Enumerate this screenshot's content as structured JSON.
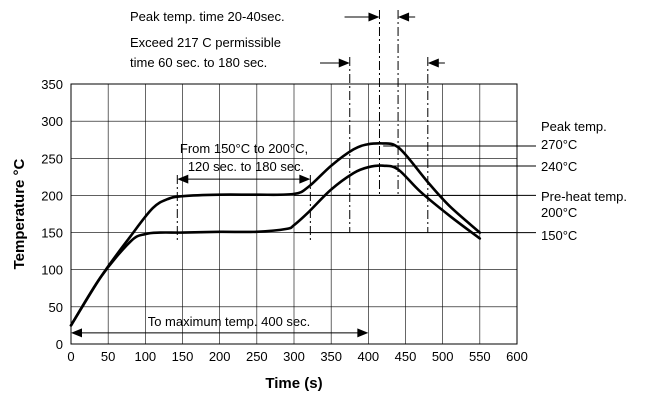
{
  "chart_data": {
    "type": "line",
    "xlabel": "Time (s)",
    "ylabel": "Temperature °C",
    "xlim": [
      0,
      600
    ],
    "ylim": [
      0,
      350
    ],
    "x_ticks": [
      "0",
      "50",
      "100",
      "150",
      "200",
      "250",
      "300",
      "350",
      "400",
      "450",
      "500",
      "550",
      "600"
    ],
    "y_ticks": [
      "0",
      "50",
      "100",
      "150",
      "200",
      "250",
      "300",
      "350"
    ],
    "grid": true,
    "series": [
      {
        "x": [
          0,
          40,
          80,
          110,
          130,
          150,
          200,
          250,
          300,
          320,
          350,
          380,
          400,
          420,
          435,
          450,
          480,
          510,
          550
        ],
        "y": [
          25,
          90,
          145,
          183,
          195,
          199,
          201,
          201,
          202,
          212,
          240,
          262,
          269,
          270,
          268,
          255,
          218,
          185,
          150
        ]
      },
      {
        "x": [
          0,
          40,
          80,
          100,
          120,
          150,
          200,
          250,
          290,
          300,
          320,
          350,
          380,
          400,
          420,
          440,
          470,
          510,
          550
        ],
        "y": [
          25,
          90,
          138,
          148,
          150,
          150,
          151,
          151,
          155,
          160,
          178,
          208,
          230,
          238,
          240,
          235,
          205,
          172,
          142
        ]
      }
    ],
    "annotations": {
      "peak_time": "Peak temp. time 20-40sec.",
      "exceed_line1": "Exceed 217 C permissible",
      "exceed_line2": "time 60 sec. to 180 sec.",
      "preheat_line1": "From 150°C to 200°C,",
      "preheat_line2": "120 sec. to 180 sec.",
      "max_temp": "To maximum temp. 400 sec.",
      "peak_label_line1": "Peak temp.",
      "peak_label_line2": "270°C",
      "label_240": "240°C",
      "preheat_label_line1": "Pre-heat temp.",
      "preheat_label_line2": "200°C",
      "label_150": "150°C"
    }
  }
}
